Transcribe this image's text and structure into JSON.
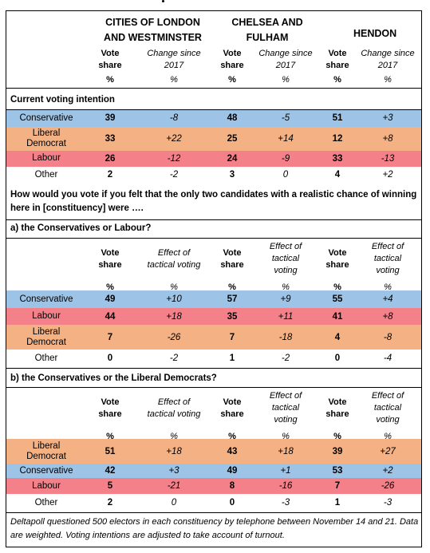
{
  "constituencies": [
    {
      "name_line1": "CITIES OF LONDON",
      "name_line2": "AND WESTMINSTER"
    },
    {
      "name_line1": "CHELSEA AND",
      "name_line2": "FULHAM"
    },
    {
      "name_line1": "HENDON",
      "name_line2": ""
    }
  ],
  "header": {
    "vote_share_line1": "Vote",
    "vote_share_line2": "share",
    "change_line1": "Change since",
    "change_line2": "2017",
    "effect_line1": "Effect of",
    "effect_line2": "tactical voting",
    "effect3_line1": "Effect of",
    "effect3_line2": "tactical",
    "effect3_line3": "voting",
    "pct": "%"
  },
  "section1": {
    "title": "Current voting intention",
    "rows": [
      {
        "party": "Conservative",
        "party2": "",
        "v": [
          "39",
          "-8",
          "48",
          "-5",
          "51",
          "+3"
        ]
      },
      {
        "party": "Liberal",
        "party2": "Democrat",
        "v": [
          "33",
          "+22",
          "25",
          "+14",
          "12",
          "+8"
        ]
      },
      {
        "party": "Labour",
        "party2": "",
        "v": [
          "26",
          "-12",
          "24",
          "-9",
          "33",
          "-13"
        ]
      },
      {
        "party": "Other",
        "party2": "",
        "v": [
          "2",
          "-2",
          "3",
          "0",
          "4",
          "+2"
        ]
      }
    ]
  },
  "question": "How would you vote if you felt that the only two candidates with a realistic chance of winning here in [constituency] were ….",
  "section2": {
    "title": "a) the Conservatives or Labour?",
    "rows": [
      {
        "party": "Conservative",
        "party2": "",
        "v": [
          "49",
          "+10",
          "57",
          "+9",
          "55",
          "+4"
        ]
      },
      {
        "party": "Labour",
        "party2": "",
        "v": [
          "44",
          "+18",
          "35",
          "+11",
          "41",
          "+8"
        ]
      },
      {
        "party": "Liberal",
        "party2": "Democrat",
        "v": [
          "7",
          "-26",
          "7",
          "-18",
          "4",
          "-8"
        ]
      },
      {
        "party": "Other",
        "party2": "",
        "v": [
          "0",
          "-2",
          "1",
          "-2",
          "0",
          "-4"
        ]
      }
    ]
  },
  "section3": {
    "title": "b)  the Conservatives or the Liberal Democrats?",
    "rows": [
      {
        "party": "Liberal",
        "party2": "Democrat",
        "v": [
          "51",
          "+18",
          "43",
          "+18",
          "39",
          "+27"
        ]
      },
      {
        "party": "Conservative",
        "party2": "",
        "v": [
          "42",
          "+3",
          "49",
          "+1",
          "53",
          "+2"
        ]
      },
      {
        "party": "Labour",
        "party2": "",
        "v": [
          "5",
          "-21",
          "8",
          "-16",
          "7",
          "-26"
        ]
      },
      {
        "party": "Other",
        "party2": "",
        "v": [
          "2",
          "0",
          "0",
          "-3",
          "1",
          "-3"
        ]
      }
    ]
  },
  "footer": "Deltapoll questioned 500 electors in each constituency by telephone between November 14 and 21. Data are weighted. Voting intentions are adjusted to take account of turnout.",
  "colors": {
    "conservative": "#9dc3e6",
    "libdem": "#f4b183",
    "labour": "#f4818a"
  }
}
